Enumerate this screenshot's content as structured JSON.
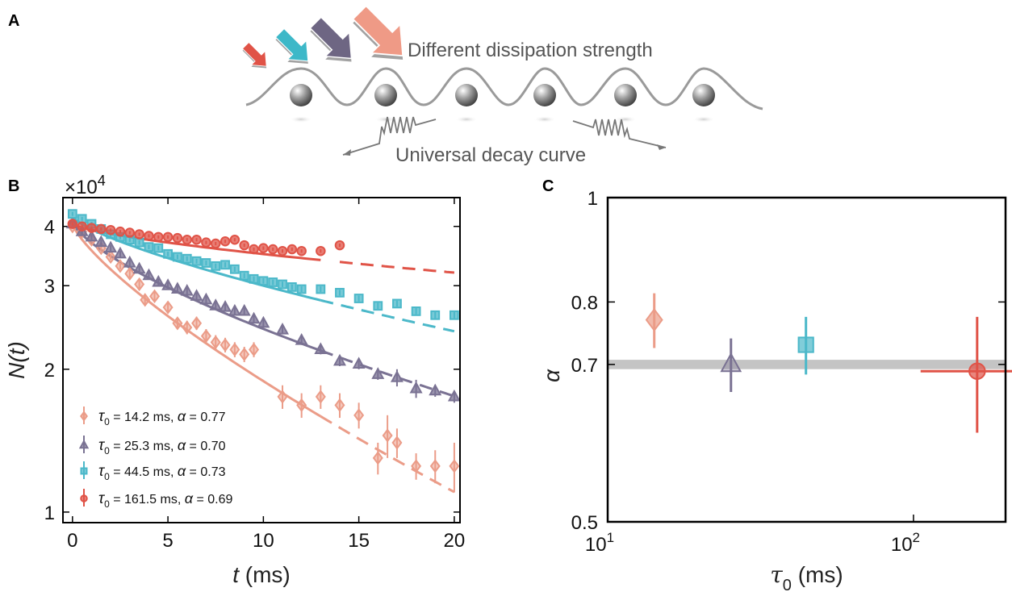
{
  "panel_a": {
    "label": "A",
    "annotation_top": "Different dissipation strength",
    "annotation_bottom": "Universal decay curve",
    "arrow_colors": [
      "#e05347",
      "#3db8c8",
      "#6e6683",
      "#ef9a86"
    ]
  },
  "chart_data": [
    {
      "panel": "B",
      "type": "scatter",
      "multiplier": "×10",
      "multiplier_exp": "4",
      "xlabel": "t",
      "xlabel_unit": " (ms)",
      "ylabel": "N(t)",
      "xlim": [
        -0.5,
        20.3
      ],
      "ylim": [
        0.95,
        4.6
      ],
      "yscale": "log",
      "xticks": [
        0,
        5,
        10,
        15,
        20
      ],
      "yticks": [
        1,
        2,
        3,
        4
      ],
      "series": [
        {
          "name": "τ0 = 14.2 ms, α = 0.77",
          "legend_parts": [
            "τ",
            "0",
            " = 14.2 ms, ",
            "α",
            " = 0.77"
          ],
          "marker": "diamond",
          "color": "#eb9c88",
          "x": [
            0,
            0.5,
            1,
            1.5,
            2,
            2.5,
            3,
            3.5,
            3.8,
            4.3,
            5,
            5.5,
            6,
            6.5,
            7,
            7.5,
            8,
            8.5,
            9,
            9.5,
            11,
            12,
            13,
            14,
            15,
            16,
            16.5,
            17,
            18,
            19,
            20
          ],
          "y": [
            4.0,
            3.9,
            3.75,
            3.6,
            3.45,
            3.3,
            3.18,
            3.02,
            2.8,
            2.85,
            2.7,
            2.5,
            2.45,
            2.5,
            2.35,
            2.28,
            2.25,
            2.2,
            2.15,
            2.2,
            1.75,
            1.68,
            1.75,
            1.68,
            1.6,
            1.3,
            1.45,
            1.4,
            1.25,
            1.25,
            1.25
          ],
          "err": [
            0.05,
            0.05,
            0.05,
            0.05,
            0.05,
            0.05,
            0.06,
            0.06,
            0.06,
            0.06,
            0.07,
            0.07,
            0.08,
            0.08,
            0.08,
            0.08,
            0.08,
            0.08,
            0.08,
            0.08,
            0.1,
            0.1,
            0.1,
            0.1,
            0.1,
            0.1,
            0.15,
            0.1,
            0.08,
            0.1,
            0.15
          ],
          "fit_solid_x": [
            0,
            13
          ],
          "fit_dash_x": [
            13,
            20
          ],
          "fit_y0": 4.05,
          "tau0": 14.2,
          "alpha": 0.77
        },
        {
          "name": "τ0 = 25.3 ms, α = 0.70",
          "legend_parts": [
            "τ",
            "0",
            " = 25.3 ms, ",
            "α",
            " = 0.70"
          ],
          "marker": "triangle",
          "color": "#7a7293",
          "x": [
            0,
            0.5,
            1,
            1.5,
            2,
            2.5,
            3,
            3.5,
            4,
            4.5,
            5,
            5.5,
            6,
            6.5,
            7,
            7.5,
            8,
            8.5,
            9,
            9.5,
            10,
            11,
            12,
            13,
            14,
            15,
            16,
            17,
            18,
            19,
            20
          ],
          "y": [
            4.05,
            3.9,
            3.8,
            3.7,
            3.6,
            3.5,
            3.35,
            3.25,
            3.15,
            3.05,
            3.0,
            2.95,
            2.92,
            2.85,
            2.8,
            2.72,
            2.7,
            2.65,
            2.65,
            2.55,
            2.5,
            2.42,
            2.3,
            2.2,
            2.08,
            2.05,
            1.95,
            1.92,
            1.82,
            1.8,
            1.75
          ],
          "err": [
            0.05,
            0.05,
            0.05,
            0.05,
            0.05,
            0.05,
            0.05,
            0.05,
            0.05,
            0.05,
            0.05,
            0.05,
            0.05,
            0.05,
            0.05,
            0.05,
            0.05,
            0.05,
            0.05,
            0.05,
            0.05,
            0.05,
            0.05,
            0.05,
            0.05,
            0.05,
            0.05,
            0.08,
            0.08,
            0.05,
            0.05
          ],
          "fit_solid_x": [
            0,
            13
          ],
          "fit_dash_x": [
            13,
            20
          ],
          "fit_y0": 4.1,
          "tau0": 25.3,
          "alpha": 0.7
        },
        {
          "name": "τ0 = 44.5 ms, α = 0.73",
          "legend_parts": [
            "τ",
            "0",
            " = 44.5 ms, ",
            "α",
            " = 0.73"
          ],
          "marker": "square",
          "color": "#4bb8c9",
          "x": [
            0,
            0.5,
            1,
            1.5,
            2,
            2.5,
            3,
            3.5,
            4,
            4.5,
            5,
            5.5,
            6,
            6.5,
            7,
            7.5,
            8,
            8.5,
            9,
            9.5,
            10,
            10.5,
            11,
            11.5,
            12,
            13,
            14,
            15,
            16,
            17,
            18,
            19,
            20
          ],
          "y": [
            4.25,
            4.15,
            4.05,
            3.95,
            3.85,
            3.8,
            3.75,
            3.7,
            3.62,
            3.6,
            3.5,
            3.45,
            3.42,
            3.38,
            3.35,
            3.3,
            3.32,
            3.25,
            3.15,
            3.1,
            3.07,
            3.05,
            3.02,
            2.98,
            2.95,
            2.95,
            2.9,
            2.82,
            2.72,
            2.75,
            2.65,
            2.6,
            2.6
          ],
          "err": [
            0.04,
            0.04,
            0.04,
            0.04,
            0.04,
            0.04,
            0.04,
            0.04,
            0.04,
            0.04,
            0.04,
            0.04,
            0.04,
            0.04,
            0.04,
            0.04,
            0.04,
            0.04,
            0.04,
            0.04,
            0.04,
            0.04,
            0.04,
            0.04,
            0.04,
            0.04,
            0.04,
            0.04,
            0.04,
            0.04,
            0.04,
            0.04,
            0.04
          ],
          "fit_solid_x": [
            0,
            13
          ],
          "fit_dash_x": [
            13,
            20
          ],
          "fit_y0": 4.2,
          "tau0": 44.5,
          "alpha": 0.73
        },
        {
          "name": "τ0 = 161.5 ms, α = 0.69",
          "legend_parts": [
            "τ",
            "0",
            " = 161.5 ms, ",
            "α",
            " = 0.69"
          ],
          "marker": "circle",
          "color": "#e05347",
          "x": [
            0,
            0.5,
            1,
            1.5,
            2,
            2.5,
            3,
            3.5,
            4,
            4.5,
            5,
            5.5,
            6,
            6.5,
            7,
            7.5,
            8,
            8.5,
            9,
            9.5,
            10,
            10.5,
            11,
            11.5,
            12,
            13,
            14
          ],
          "y": [
            4.05,
            4.0,
            3.97,
            3.95,
            3.93,
            3.9,
            3.88,
            3.85,
            3.82,
            3.8,
            3.8,
            3.78,
            3.75,
            3.75,
            3.7,
            3.68,
            3.72,
            3.75,
            3.65,
            3.58,
            3.6,
            3.58,
            3.55,
            3.58,
            3.55,
            3.55,
            3.65
          ],
          "err": [
            0.03,
            0.03,
            0.03,
            0.03,
            0.03,
            0.03,
            0.03,
            0.03,
            0.03,
            0.03,
            0.03,
            0.03,
            0.03,
            0.03,
            0.03,
            0.03,
            0.03,
            0.03,
            0.03,
            0.03,
            0.03,
            0.03,
            0.03,
            0.03,
            0.03,
            0.03,
            0.03
          ],
          "fit_solid_x": [
            0,
            13
          ],
          "fit_dash_x": [
            14,
            20
          ],
          "fit_y0": 4.05,
          "tau0": 161.5,
          "alpha": 0.69
        }
      ]
    },
    {
      "panel": "C",
      "type": "scatter",
      "xlabel": "τ",
      "xlabel_sub": "0",
      "xlabel_unit": " (ms)",
      "ylabel": "α",
      "xscale": "log",
      "xlim": [
        10,
        200
      ],
      "ylim": [
        0.5,
        1.0
      ],
      "yscale": "log",
      "yticks": [
        0.5,
        0.7,
        0.8,
        1
      ],
      "ytick_labels": [
        "0.5",
        "0.7",
        "0.8",
        "1"
      ],
      "xticks": [
        10,
        100
      ],
      "xtick_base": "10",
      "xtick_exps": [
        "1",
        "2"
      ],
      "band": {
        "center": 0.7,
        "half_width": 0.007,
        "color": "#c4c4c4"
      },
      "points": [
        {
          "x": 14.2,
          "y": 0.77,
          "yerr": 0.045,
          "xerr": 0,
          "marker": "diamond",
          "color": "#eb9c88"
        },
        {
          "x": 25.3,
          "y": 0.7,
          "yerr": 0.04,
          "xerr": 0,
          "marker": "triangle",
          "color": "#7a7293"
        },
        {
          "x": 44.5,
          "y": 0.73,
          "yerr": 0.045,
          "xerr": 0,
          "marker": "square",
          "color": "#4bb8c9"
        },
        {
          "x": 161.5,
          "y": 0.69,
          "yerr": 0.085,
          "xerr_lo": 40,
          "xerr_hi": 38,
          "marker": "circle",
          "color": "#e05347"
        }
      ]
    }
  ]
}
